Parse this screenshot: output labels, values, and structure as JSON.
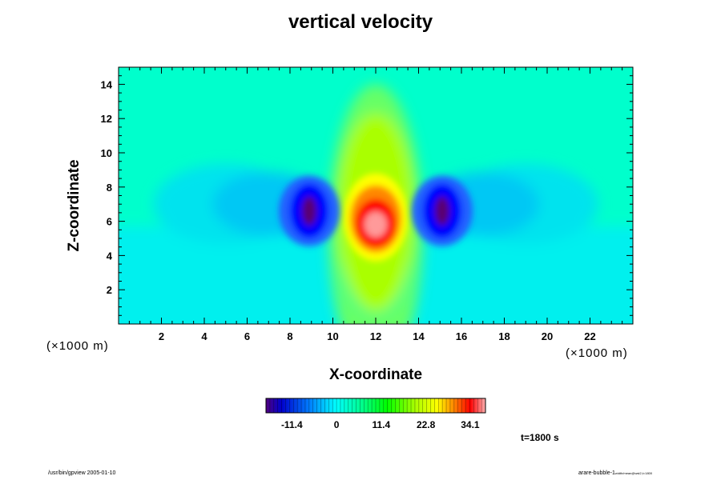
{
  "chart_data": {
    "type": "heatmap",
    "title": "vertical velocity",
    "xlabel": "X-coordinate",
    "ylabel": "Z-coordinate",
    "x_unit": "(×1000 m)",
    "y_unit": "(×1000 m)",
    "xlim": [
      0,
      24
    ],
    "ylim": [
      0,
      15
    ],
    "x_ticks": [
      "2",
      "4",
      "6",
      "8",
      "10",
      "12",
      "14",
      "16",
      "18",
      "20",
      "22"
    ],
    "y_ticks": [
      "2",
      "4",
      "6",
      "8",
      "10",
      "12",
      "14"
    ],
    "colorbar": {
      "range": [
        -18,
        38
      ],
      "tick_values": [
        -11.4,
        0,
        11.4,
        22.8,
        34.1
      ],
      "tick_labels": [
        "-11.4",
        "0",
        "11.4",
        "22.8",
        "34.1"
      ]
    },
    "time_label": "t=1800 s",
    "features": [
      {
        "kind": "updraft",
        "x": 12.0,
        "z": 6.0,
        "peak": 38
      },
      {
        "kind": "downdraft",
        "x": 8.9,
        "z": 6.6,
        "peak": -18
      },
      {
        "kind": "downdraft",
        "x": 15.1,
        "z": 6.6,
        "peak": -18
      }
    ],
    "colors": {
      "low": "#5a0070",
      "neg": "#0000ff",
      "zero": "#00ffcc",
      "mid": "#00ff00",
      "high_yellow": "#ffff00",
      "high_red": "#ff0000",
      "top": "#ff9a9a"
    }
  },
  "footer": {
    "left": "/usr/bin/gpview 2005-01-10",
    "right_main": "arare-bubble-1",
    "right_sub": "width/mean@wst2,t=1800"
  }
}
